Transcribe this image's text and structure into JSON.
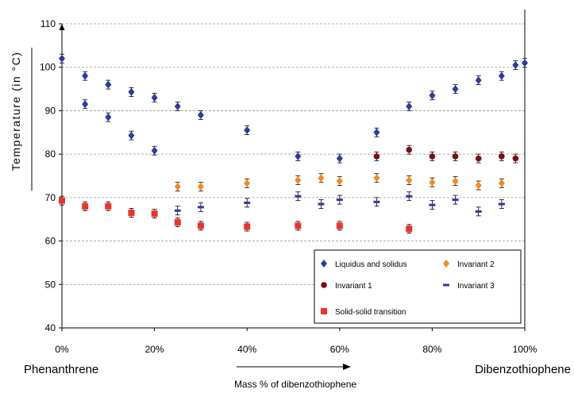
{
  "chart_data": {
    "type": "scatter",
    "ylabel": "Temperature (in °C)",
    "xlabel": "Mass % of dibenzothiophene",
    "left_label": "Phenanthrene",
    "right_label": "Dibenzothiophene",
    "ylim": [
      40,
      110
    ],
    "yticks": [
      "40",
      "50",
      "60",
      "70",
      "80",
      "90",
      "100",
      "110"
    ],
    "xlim": [
      0,
      100
    ],
    "xticks": [
      "0%",
      "20%",
      "40%",
      "60%",
      "80%",
      "100%"
    ],
    "grid": "horizontal dashed",
    "legend_position": "bottom-right",
    "series": [
      {
        "name": "Liquidus and solidus",
        "marker": "diamond",
        "color": "#2E3A9E",
        "points": [
          [
            0,
            102
          ],
          [
            5,
            98
          ],
          [
            5,
            91.5
          ],
          [
            10,
            96
          ],
          [
            10,
            88.5
          ],
          [
            15,
            94.3
          ],
          [
            15,
            84.3
          ],
          [
            20,
            93
          ],
          [
            20,
            80.8
          ],
          [
            25,
            91
          ],
          [
            30,
            89
          ],
          [
            40,
            85.5
          ],
          [
            51,
            79.5
          ],
          [
            60,
            79
          ],
          [
            68,
            85
          ],
          [
            75,
            91
          ],
          [
            80,
            93.5
          ],
          [
            85,
            95
          ],
          [
            90,
            97
          ],
          [
            95,
            98
          ],
          [
            98,
            100.5
          ],
          [
            100,
            101
          ]
        ]
      },
      {
        "name": "Invariant 1",
        "marker": "circle",
        "color": "#7A0F16",
        "points": [
          [
            68,
            79.5
          ],
          [
            75,
            81
          ],
          [
            80,
            79.5
          ],
          [
            85,
            79.5
          ],
          [
            90,
            79
          ],
          [
            95,
            79.5
          ],
          [
            98,
            79
          ]
        ]
      },
      {
        "name": "Solid-solid transition",
        "marker": "square",
        "color": "#E8342B",
        "points": [
          [
            0,
            69.3
          ],
          [
            5,
            68
          ],
          [
            10,
            68
          ],
          [
            15,
            66.5
          ],
          [
            20,
            66.3
          ],
          [
            25,
            64.3
          ],
          [
            30,
            63.5
          ],
          [
            40,
            63.3
          ],
          [
            51,
            63.5
          ],
          [
            60,
            63.5
          ],
          [
            75,
            62.8
          ]
        ]
      },
      {
        "name": "Invariant 2",
        "marker": "diamond",
        "color": "#F28A1E",
        "points": [
          [
            25,
            72.5
          ],
          [
            30,
            72.5
          ],
          [
            40,
            73.3
          ],
          [
            51,
            74
          ],
          [
            56,
            74.5
          ],
          [
            60,
            73.8
          ],
          [
            68,
            74.5
          ],
          [
            75,
            74
          ],
          [
            80,
            73.5
          ],
          [
            85,
            73.8
          ],
          [
            90,
            72.8
          ],
          [
            95,
            73.3
          ]
        ]
      },
      {
        "name": "Invariant 3",
        "marker": "dash",
        "color": "#2E3A9E",
        "points": [
          [
            25,
            67
          ],
          [
            30,
            67.8
          ],
          [
            40,
            68.8
          ],
          [
            51,
            70.3
          ],
          [
            56,
            68.5
          ],
          [
            60,
            69.5
          ],
          [
            68,
            69
          ],
          [
            75,
            70.3
          ],
          [
            80,
            68.3
          ],
          [
            85,
            69.5
          ],
          [
            90,
            66.8
          ],
          [
            95,
            68.5
          ]
        ]
      }
    ]
  }
}
